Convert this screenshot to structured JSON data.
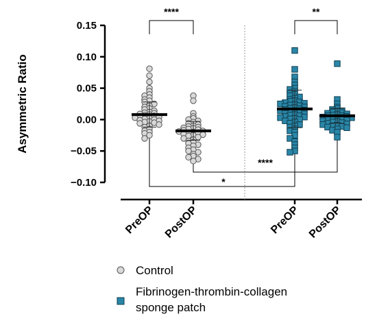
{
  "chart_data": {
    "type": "scatter",
    "ylabel": "Asymmetric Ratio",
    "ylim": [
      -0.1,
      0.15
    ],
    "yticks": [
      0.15,
      0.1,
      0.05,
      0.0,
      -0.05,
      -0.1
    ],
    "ytick_labels": [
      "0.15",
      "0.10",
      "0.05",
      "0.00",
      "−0.05",
      "−0.10"
    ],
    "categories": [
      "PreOP",
      "PostOP",
      "PreOP",
      "PostOP"
    ],
    "series": [
      {
        "name": "Control",
        "marker": "circle",
        "color": "#d9d9d9",
        "groups": [
          {
            "category": "PreOP",
            "mean": 0.008,
            "sd": 0.02,
            "values": [
              0.081,
              0.07,
              0.06,
              0.05,
              0.045,
              0.04,
              0.038,
              0.035,
              0.032,
              0.03,
              0.028,
              0.025,
              0.022,
              0.02,
              0.018,
              0.016,
              0.014,
              0.012,
              0.011,
              0.01,
              0.009,
              0.008,
              0.007,
              0.006,
              0.005,
              0.004,
              0.003,
              0.002,
              0.001,
              0.0,
              -0.001,
              -0.002,
              -0.003,
              -0.004,
              -0.005,
              -0.006,
              -0.008,
              -0.01,
              -0.012,
              -0.015,
              -0.018,
              -0.02,
              -0.022,
              -0.025,
              -0.03
            ]
          },
          {
            "category": "PostOP",
            "mean": -0.018,
            "sd": 0.015,
            "values": [
              0.038,
              0.03,
              0.01,
              0.005,
              0.002,
              0.0,
              -0.002,
              -0.004,
              -0.006,
              -0.008,
              -0.01,
              -0.011,
              -0.012,
              -0.013,
              -0.014,
              -0.015,
              -0.016,
              -0.017,
              -0.018,
              -0.019,
              -0.02,
              -0.021,
              -0.022,
              -0.023,
              -0.024,
              -0.025,
              -0.026,
              -0.028,
              -0.03,
              -0.032,
              -0.034,
              -0.036,
              -0.038,
              -0.04,
              -0.042,
              -0.045,
              -0.048,
              -0.05,
              -0.052,
              -0.055,
              -0.058,
              -0.06,
              -0.063,
              -0.066
            ]
          }
        ]
      },
      {
        "name": "Fibrinogen-thrombin-collagen sponge patch",
        "marker": "square",
        "color": "#2a86a7",
        "groups": [
          {
            "category": "PreOP",
            "mean": 0.017,
            "sd": 0.03,
            "values": [
              0.11,
              0.08,
              0.068,
              0.06,
              0.055,
              0.05,
              0.048,
              0.045,
              0.042,
              0.04,
              0.038,
              0.036,
              0.034,
              0.032,
              0.03,
              0.029,
              0.028,
              0.027,
              0.026,
              0.025,
              0.024,
              0.023,
              0.022,
              0.021,
              0.02,
              0.019,
              0.018,
              0.017,
              0.016,
              0.015,
              0.014,
              0.013,
              0.012,
              0.011,
              0.01,
              0.009,
              0.008,
              0.007,
              0.006,
              0.005,
              0.004,
              0.003,
              0.002,
              0.001,
              0.0,
              -0.002,
              -0.004,
              -0.006,
              -0.008,
              -0.01,
              -0.012,
              -0.015,
              -0.018,
              -0.02,
              -0.025,
              -0.03,
              -0.035,
              -0.04,
              -0.045,
              -0.05,
              -0.052
            ]
          },
          {
            "category": "PostOP",
            "mean": 0.006,
            "sd": 0.012,
            "values": [
              0.089,
              0.032,
              0.025,
              0.02,
              0.018,
              0.016,
              0.014,
              0.013,
              0.012,
              0.011,
              0.01,
              0.009,
              0.008,
              0.007,
              0.006,
              0.006,
              0.005,
              0.004,
              0.003,
              0.002,
              0.002,
              0.001,
              0.0,
              -0.001,
              -0.002,
              -0.003,
              -0.004,
              -0.005,
              -0.006,
              -0.007,
              -0.008,
              -0.009,
              -0.01,
              -0.011,
              -0.012,
              -0.013,
              -0.015,
              -0.017,
              -0.02,
              -0.028
            ]
          }
        ]
      }
    ],
    "significance": [
      {
        "from": 0,
        "to": 1,
        "label": "****",
        "position": "top"
      },
      {
        "from": 2,
        "to": 3,
        "label": "**",
        "position": "top"
      },
      {
        "from": 1,
        "to": 3,
        "label": "****",
        "position": "bottom"
      },
      {
        "from": 0,
        "to": 2,
        "label": "*",
        "position": "bottom"
      }
    ],
    "legend_position": "bottom-left",
    "grid": false
  }
}
